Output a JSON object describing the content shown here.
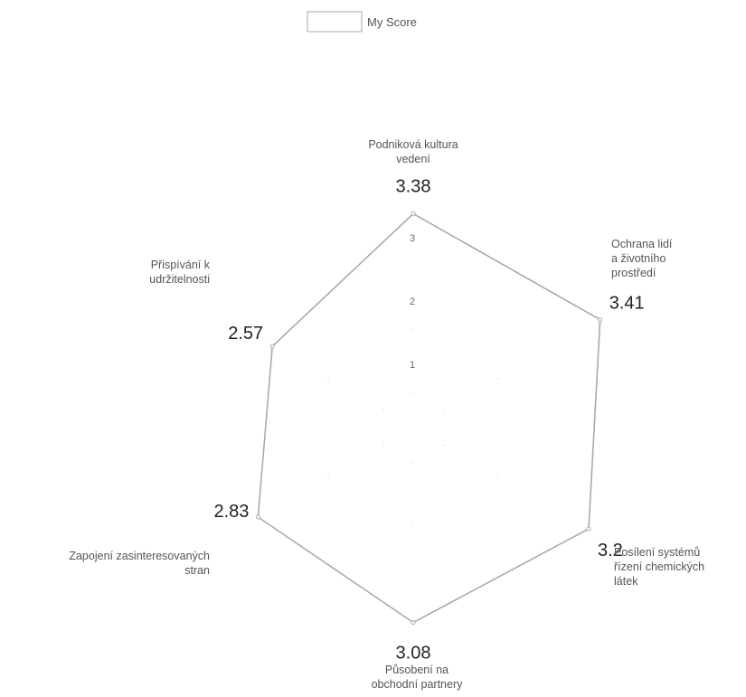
{
  "chart_data": {
    "type": "radar",
    "legend": {
      "position": "top",
      "entries": [
        "My Score"
      ]
    },
    "axes": [
      "Podniková kultura vedení",
      "Ochrana lidí a životního prostředí",
      "Posílení systémů řízení chemických látek",
      "Působení na obchodní partnery",
      "Zapojení zasinteresovaných stran",
      "Přispívání k udržitelnosti"
    ],
    "axis_label_lines": [
      [
        "Podniková kultura",
        "vedení"
      ],
      [
        "Ochrana lidí",
        "a životního",
        "prostředí"
      ],
      [
        "Posílení systémů",
        "řízení chemických",
        "látek"
      ],
      [
        "Působení na",
        "obchodní partnery"
      ],
      [
        "Zapojení zasinteresovaných",
        "stran"
      ],
      [
        "Přispívání k",
        "udržitelnosti"
      ]
    ],
    "series": [
      {
        "name": "My Score",
        "values": [
          3.38,
          3.41,
          3.2,
          3.08,
          2.83,
          2.57
        ],
        "labels": [
          "3.38",
          "3.41",
          "3.2",
          "3.08",
          "2.83",
          "2.57"
        ]
      }
    ],
    "scale": {
      "min": 0,
      "max": 3.5,
      "ticks": [
        1,
        2,
        3
      ]
    },
    "grid": false,
    "colors": {
      "series": "#aaaaaa",
      "text": "#555555",
      "values": "#222222"
    }
  }
}
